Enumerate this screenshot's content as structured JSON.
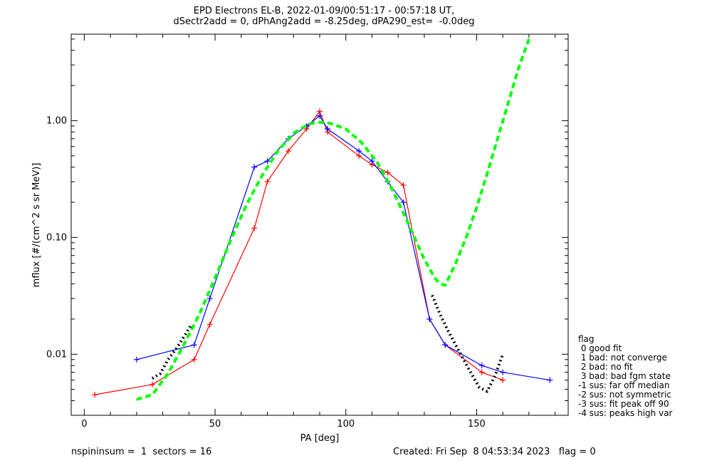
{
  "title": {
    "line1": "EPD Electrons EL-B, 2022-01-09/00:51:17 - 00:57:18 UT,",
    "line2": "dSectr2add = 0, dPhAng2add = -8.25deg, dPA290_est=  -0.0deg"
  },
  "footer": {
    "left": "nspininsum =  1  sectors = 16",
    "right": "Created: Fri Sep  8 04:53:34 2023   flag = 0"
  },
  "legend": {
    "title": "flag",
    "items": [
      " 0 good fit",
      " 1 bad: not converge",
      " 2 bad: no fit",
      " 3 bad: bad fgm state",
      "-1 sus: far off median",
      "-2 sus: not symmetric",
      "-3 sus: fit peak off 90",
      "-4 sus: peaks high var"
    ]
  },
  "colors": {
    "series_a": "#ff0000",
    "series_b": "#0000ff",
    "fit": "#00ff00",
    "fit_region": "#000000"
  },
  "chart_data": {
    "type": "line",
    "xlabel": "PA [deg]",
    "ylabel": "mflux [#/(cm^2 s sr MeV)]",
    "xlim": [
      -5,
      185
    ],
    "ylim": [
      0.003,
      5.5
    ],
    "yscale": "log",
    "grid": false,
    "xticks": [
      0,
      50,
      100,
      150
    ],
    "xtick_labels": [
      "0",
      "50",
      "100",
      "150"
    ],
    "yticks": [
      0.01,
      0.1,
      1.0
    ],
    "ytick_labels": [
      "0.01",
      "0.10",
      "1.00"
    ],
    "series": [
      {
        "color": "#ff0000",
        "x": [
          4,
          26,
          42,
          48,
          65,
          70,
          78,
          85,
          90,
          93,
          105,
          110,
          116,
          122,
          132,
          138,
          152,
          160
        ],
        "values": [
          0.0045,
          0.0055,
          0.009,
          0.018,
          0.12,
          0.3,
          0.55,
          0.85,
          1.2,
          0.8,
          0.5,
          0.42,
          0.36,
          0.28,
          0.02,
          0.012,
          0.007,
          0.006
        ]
      },
      {
        "color": "#0000ff",
        "x": [
          20,
          42,
          48,
          65,
          70,
          78,
          85,
          90,
          93,
          105,
          110,
          116,
          122,
          132,
          138,
          152,
          160,
          178
        ],
        "values": [
          0.009,
          0.012,
          0.03,
          0.4,
          0.45,
          0.7,
          0.9,
          1.1,
          0.85,
          0.55,
          0.45,
          0.3,
          0.2,
          0.02,
          0.012,
          0.008,
          0.007,
          0.006
        ]
      },
      {
        "color": "#00ff00",
        "style": "dashed",
        "x": [
          20,
          26,
          32,
          38,
          44,
          50,
          56,
          62,
          68,
          74,
          80,
          86,
          90,
          94,
          100,
          106,
          112,
          118,
          124,
          130,
          134,
          136,
          138,
          142,
          146,
          150,
          154,
          158,
          162,
          166,
          170
        ],
        "values": [
          0.0041,
          0.0045,
          0.0068,
          0.012,
          0.022,
          0.045,
          0.095,
          0.19,
          0.34,
          0.55,
          0.78,
          0.94,
          0.97,
          0.95,
          0.85,
          0.65,
          0.44,
          0.25,
          0.13,
          0.065,
          0.045,
          0.04,
          0.039,
          0.06,
          0.1,
          0.18,
          0.35,
          0.7,
          1.4,
          2.8,
          5.0
        ]
      },
      {
        "color": "#000000",
        "style": "dotted",
        "x": [
          26,
          29,
          32,
          35,
          38,
          41
        ],
        "values": [
          0.0062,
          0.0068,
          0.009,
          0.011,
          0.014,
          0.018
        ]
      },
      {
        "color": "#000000",
        "style": "dotted",
        "x": [
          133,
          136,
          139,
          142,
          145,
          148,
          151,
          154,
          157,
          160
        ],
        "values": [
          0.032,
          0.022,
          0.016,
          0.012,
          0.009,
          0.0068,
          0.0052,
          0.0048,
          0.0065,
          0.01
        ]
      }
    ]
  }
}
